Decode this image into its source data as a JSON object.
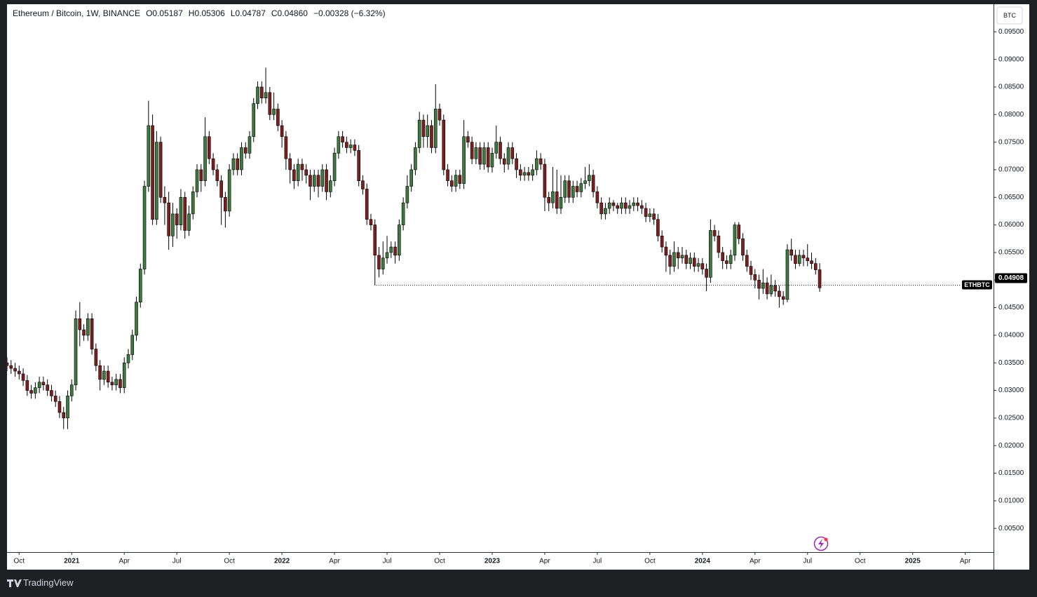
{
  "chart_data": {
    "type": "candlestick",
    "title": "Ethereum / Bitcoin, 1W, BINANCE",
    "ohlc_labels": [
      "O0.05187",
      "H0.05306",
      "L0.04787",
      "C0.04860",
      "−0.00328 (−6.32%)"
    ],
    "currency": "BTC",
    "symbol_label": "ETHBTC",
    "price_line": {
      "value": 0.04908,
      "label": "0.04908"
    },
    "up_color": "#3d7a3f",
    "down_color": "#7e1f1f",
    "wick_color": "#000000",
    "grid": false,
    "xlim": [
      0,
      244
    ],
    "xticks": [
      {
        "value": 3,
        "label": "Oct"
      },
      {
        "value": 16,
        "label": "2021"
      },
      {
        "value": 29,
        "label": "Apr"
      },
      {
        "value": 42,
        "label": "Jul"
      },
      {
        "value": 55,
        "label": "Oct"
      },
      {
        "value": 68,
        "label": "2022"
      },
      {
        "value": 81,
        "label": "Apr"
      },
      {
        "value": 94,
        "label": "Jul"
      },
      {
        "value": 107,
        "label": "Oct"
      },
      {
        "value": 120,
        "label": "2023"
      },
      {
        "value": 133,
        "label": "Apr"
      },
      {
        "value": 146,
        "label": "Jul"
      },
      {
        "value": 159,
        "label": "Oct"
      },
      {
        "value": 172,
        "label": "2024"
      },
      {
        "value": 185,
        "label": "Apr"
      },
      {
        "value": 198,
        "label": "Jul"
      },
      {
        "value": 211,
        "label": "Oct"
      },
      {
        "value": 224,
        "label": "2025"
      },
      {
        "value": 237,
        "label": "Apr"
      }
    ],
    "ylim": [
      0.0007,
      0.1
    ],
    "yticks": [
      {
        "value": 0.005,
        "label": "0.00500"
      },
      {
        "value": 0.01,
        "label": "0.01000"
      },
      {
        "value": 0.015,
        "label": "0.01500"
      },
      {
        "value": 0.02,
        "label": "0.02000"
      },
      {
        "value": 0.025,
        "label": "0.02500"
      },
      {
        "value": 0.03,
        "label": "0.03000"
      },
      {
        "value": 0.035,
        "label": "0.03500"
      },
      {
        "value": 0.04,
        "label": "0.04000"
      },
      {
        "value": 0.045,
        "label": "0.04500"
      },
      {
        "value": 0.05,
        "label": "0.05000"
      },
      {
        "value": 0.055,
        "label": "0.05500"
      },
      {
        "value": 0.06,
        "label": "0.06000"
      },
      {
        "value": 0.065,
        "label": "0.06500"
      },
      {
        "value": 0.07,
        "label": "0.07000"
      },
      {
        "value": 0.075,
        "label": "0.07500"
      },
      {
        "value": 0.08,
        "label": "0.08000"
      },
      {
        "value": 0.085,
        "label": "0.08500"
      },
      {
        "value": 0.09,
        "label": "0.09000"
      },
      {
        "value": 0.095,
        "label": "0.09500"
      }
    ],
    "open": [
      0.035,
      0.0345,
      0.034,
      0.0335,
      0.033,
      0.0318,
      0.03,
      0.0295,
      0.0305,
      0.0315,
      0.031,
      0.03,
      0.029,
      0.028,
      0.026,
      0.025,
      0.029,
      0.031,
      0.043,
      0.041,
      0.04,
      0.043,
      0.0375,
      0.0345,
      0.032,
      0.0335,
      0.0315,
      0.031,
      0.032,
      0.0305,
      0.035,
      0.0365,
      0.04,
      0.046,
      0.052,
      0.067,
      0.078,
      0.061,
      0.075,
      0.065,
      0.064,
      0.058,
      0.062,
      0.06,
      0.065,
      0.059,
      0.062,
      0.066,
      0.07,
      0.068,
      0.076,
      0.072,
      0.07,
      0.068,
      0.065,
      0.0625,
      0.07,
      0.072,
      0.07,
      0.074,
      0.073,
      0.076,
      0.082,
      0.085,
      0.083,
      0.084,
      0.08,
      0.081,
      0.078,
      0.076,
      0.072,
      0.07,
      0.068,
      0.071,
      0.07,
      0.069,
      0.067,
      0.069,
      0.067,
      0.07,
      0.066,
      0.068,
      0.073,
      0.076,
      0.075,
      0.074,
      0.0745,
      0.0735,
      0.068,
      0.0665,
      0.061,
      0.06,
      0.0545,
      0.052,
      0.054,
      0.055,
      0.056,
      0.0545,
      0.06,
      0.064,
      0.067,
      0.07,
      0.074,
      0.079,
      0.076,
      0.078,
      0.074,
      0.081,
      0.079,
      0.07,
      0.068,
      0.067,
      0.069,
      0.0675,
      0.076,
      0.075,
      0.072,
      0.074,
      0.071,
      0.074,
      0.0705,
      0.073,
      0.075,
      0.072,
      0.071,
      0.074,
      0.072,
      0.07,
      0.069,
      0.0695,
      0.069,
      0.07,
      0.072,
      0.071,
      0.065,
      0.064,
      0.066,
      0.063,
      0.065,
      0.068,
      0.065,
      0.067,
      0.066,
      0.0675,
      0.068,
      0.069,
      0.066,
      0.064,
      0.062,
      0.063,
      0.064,
      0.0635,
      0.063,
      0.064,
      0.063,
      0.0635,
      0.064,
      0.0635,
      0.063,
      0.0615,
      0.062,
      0.061,
      0.058,
      0.056,
      0.0545,
      0.0525,
      0.055,
      0.054,
      0.0545,
      0.053,
      0.054,
      0.0525,
      0.053,
      0.052,
      0.0505,
      0.059,
      0.058,
      0.055,
      0.0535,
      0.053,
      0.0545,
      0.06,
      0.0575,
      0.0545,
      0.0525,
      0.051,
      0.05,
      0.0485,
      0.0495,
      0.0475,
      0.049,
      0.048,
      0.047,
      0.0465,
      0.0555,
      0.0545,
      0.053,
      0.0545,
      0.054,
      0.0535,
      0.053,
      0.05187
    ],
    "high": [
      0.036,
      0.0355,
      0.035,
      0.0345,
      0.034,
      0.0328,
      0.031,
      0.0315,
      0.0325,
      0.0325,
      0.032,
      0.031,
      0.03,
      0.029,
      0.027,
      0.03,
      0.032,
      0.0445,
      0.046,
      0.042,
      0.044,
      0.044,
      0.0385,
      0.0355,
      0.0345,
      0.0345,
      0.0325,
      0.033,
      0.033,
      0.036,
      0.0375,
      0.041,
      0.047,
      0.053,
      0.068,
      0.0825,
      0.08,
      0.077,
      0.076,
      0.067,
      0.066,
      0.064,
      0.063,
      0.0665,
      0.066,
      0.0635,
      0.067,
      0.071,
      0.071,
      0.0795,
      0.077,
      0.073,
      0.071,
      0.069,
      0.066,
      0.071,
      0.073,
      0.073,
      0.075,
      0.075,
      0.077,
      0.083,
      0.086,
      0.086,
      0.0885,
      0.085,
      0.084,
      0.082,
      0.079,
      0.077,
      0.073,
      0.071,
      0.072,
      0.072,
      0.071,
      0.07,
      0.07,
      0.07,
      0.071,
      0.071,
      0.069,
      0.074,
      0.077,
      0.077,
      0.076,
      0.0755,
      0.0755,
      0.0745,
      0.069,
      0.0675,
      0.062,
      0.061,
      0.056,
      0.057,
      0.058,
      0.057,
      0.057,
      0.061,
      0.065,
      0.069,
      0.071,
      0.075,
      0.0805,
      0.08,
      0.08,
      0.079,
      0.0855,
      0.082,
      0.08,
      0.071,
      0.069,
      0.07,
      0.07,
      0.079,
      0.077,
      0.076,
      0.075,
      0.075,
      0.075,
      0.075,
      0.074,
      0.078,
      0.076,
      0.073,
      0.075,
      0.075,
      0.073,
      0.071,
      0.0705,
      0.0705,
      0.071,
      0.0735,
      0.073,
      0.072,
      0.066,
      0.0705,
      0.07,
      0.069,
      0.069,
      0.069,
      0.068,
      0.068,
      0.0685,
      0.0705,
      0.071,
      0.07,
      0.067,
      0.065,
      0.064,
      0.065,
      0.0645,
      0.064,
      0.065,
      0.065,
      0.0645,
      0.065,
      0.065,
      0.0645,
      0.064,
      0.063,
      0.063,
      0.062,
      0.059,
      0.057,
      0.0555,
      0.057,
      0.056,
      0.056,
      0.0555,
      0.055,
      0.055,
      0.054,
      0.054,
      0.053,
      0.061,
      0.06,
      0.059,
      0.056,
      0.0545,
      0.0555,
      0.0605,
      0.0605,
      0.0585,
      0.0555,
      0.0535,
      0.052,
      0.051,
      0.052,
      0.0505,
      0.051,
      0.05,
      0.049,
      0.048,
      0.0565,
      0.0575,
      0.0555,
      0.0555,
      0.0555,
      0.0565,
      0.055,
      0.054,
      0.05306
    ],
    "low": [
      0.0335,
      0.033,
      0.0325,
      0.032,
      0.0308,
      0.029,
      0.0285,
      0.0285,
      0.0295,
      0.03,
      0.029,
      0.028,
      0.027,
      0.025,
      0.023,
      0.023,
      0.028,
      0.03,
      0.038,
      0.039,
      0.039,
      0.0365,
      0.0335,
      0.03,
      0.031,
      0.0305,
      0.03,
      0.03,
      0.0295,
      0.0295,
      0.034,
      0.0355,
      0.039,
      0.045,
      0.051,
      0.066,
      0.06,
      0.06,
      0.064,
      0.06,
      0.0555,
      0.056,
      0.0575,
      0.059,
      0.0575,
      0.058,
      0.061,
      0.065,
      0.066,
      0.067,
      0.071,
      0.069,
      0.067,
      0.06,
      0.0595,
      0.0615,
      0.069,
      0.069,
      0.069,
      0.072,
      0.072,
      0.075,
      0.081,
      0.082,
      0.082,
      0.079,
      0.079,
      0.077,
      0.074,
      0.07,
      0.0675,
      0.0665,
      0.067,
      0.068,
      0.0675,
      0.0645,
      0.066,
      0.065,
      0.066,
      0.0645,
      0.065,
      0.067,
      0.072,
      0.074,
      0.073,
      0.073,
      0.0725,
      0.067,
      0.0655,
      0.06,
      0.059,
      0.049,
      0.0505,
      0.051,
      0.053,
      0.054,
      0.053,
      0.0535,
      0.059,
      0.063,
      0.066,
      0.069,
      0.073,
      0.074,
      0.074,
      0.073,
      0.073,
      0.078,
      0.069,
      0.067,
      0.066,
      0.066,
      0.0665,
      0.0665,
      0.074,
      0.071,
      0.071,
      0.07,
      0.07,
      0.0695,
      0.0695,
      0.072,
      0.071,
      0.0695,
      0.07,
      0.071,
      0.0685,
      0.068,
      0.068,
      0.068,
      0.068,
      0.069,
      0.07,
      0.0625,
      0.0625,
      0.063,
      0.062,
      0.062,
      0.064,
      0.064,
      0.064,
      0.065,
      0.065,
      0.0665,
      0.067,
      0.065,
      0.063,
      0.061,
      0.061,
      0.062,
      0.0625,
      0.062,
      0.062,
      0.062,
      0.062,
      0.0625,
      0.0625,
      0.062,
      0.0605,
      0.0605,
      0.06,
      0.057,
      0.055,
      0.0515,
      0.051,
      0.0515,
      0.052,
      0.053,
      0.052,
      0.052,
      0.0515,
      0.0515,
      0.051,
      0.048,
      0.0495,
      0.057,
      0.054,
      0.052,
      0.052,
      0.052,
      0.0535,
      0.0565,
      0.0535,
      0.0515,
      0.05,
      0.0485,
      0.0465,
      0.0475,
      0.0465,
      0.047,
      0.047,
      0.045,
      0.0455,
      0.046,
      0.0535,
      0.052,
      0.0525,
      0.0525,
      0.0525,
      0.052,
      0.051,
      0.04787
    ],
    "close": [
      0.0345,
      0.034,
      0.0335,
      0.033,
      0.0318,
      0.03,
      0.0295,
      0.0305,
      0.0315,
      0.031,
      0.03,
      0.029,
      0.028,
      0.026,
      0.025,
      0.029,
      0.031,
      0.043,
      0.041,
      0.04,
      0.043,
      0.0375,
      0.0345,
      0.032,
      0.0335,
      0.0315,
      0.031,
      0.032,
      0.0305,
      0.035,
      0.0365,
      0.04,
      0.046,
      0.052,
      0.067,
      0.078,
      0.061,
      0.075,
      0.065,
      0.064,
      0.058,
      0.062,
      0.06,
      0.065,
      0.059,
      0.062,
      0.066,
      0.07,
      0.068,
      0.076,
      0.072,
      0.07,
      0.068,
      0.065,
      0.0625,
      0.07,
      0.072,
      0.07,
      0.074,
      0.073,
      0.076,
      0.082,
      0.085,
      0.083,
      0.084,
      0.08,
      0.081,
      0.078,
      0.076,
      0.072,
      0.07,
      0.068,
      0.071,
      0.07,
      0.069,
      0.067,
      0.069,
      0.067,
      0.07,
      0.066,
      0.068,
      0.073,
      0.076,
      0.075,
      0.074,
      0.0745,
      0.0735,
      0.068,
      0.0665,
      0.061,
      0.06,
      0.0545,
      0.052,
      0.054,
      0.055,
      0.056,
      0.0545,
      0.06,
      0.064,
      0.067,
      0.07,
      0.074,
      0.079,
      0.076,
      0.078,
      0.074,
      0.081,
      0.079,
      0.07,
      0.068,
      0.067,
      0.069,
      0.0675,
      0.076,
      0.075,
      0.072,
      0.074,
      0.071,
      0.074,
      0.0705,
      0.073,
      0.075,
      0.072,
      0.071,
      0.074,
      0.072,
      0.07,
      0.069,
      0.0695,
      0.069,
      0.07,
      0.072,
      0.071,
      0.065,
      0.064,
      0.066,
      0.063,
      0.065,
      0.068,
      0.065,
      0.067,
      0.066,
      0.0675,
      0.068,
      0.069,
      0.066,
      0.064,
      0.062,
      0.063,
      0.064,
      0.0635,
      0.063,
      0.064,
      0.063,
      0.0635,
      0.064,
      0.0635,
      0.063,
      0.0615,
      0.062,
      0.061,
      0.058,
      0.056,
      0.0545,
      0.0525,
      0.055,
      0.054,
      0.0545,
      0.053,
      0.054,
      0.0525,
      0.053,
      0.052,
      0.0505,
      0.059,
      0.058,
      0.055,
      0.0535,
      0.053,
      0.0545,
      0.06,
      0.0575,
      0.0545,
      0.0525,
      0.051,
      0.05,
      0.0485,
      0.0495,
      0.0475,
      0.049,
      0.048,
      0.047,
      0.0465,
      0.0555,
      0.0545,
      0.053,
      0.0545,
      0.054,
      0.0535,
      0.053,
      0.05187,
      0.0486
    ]
  },
  "brand": "TradingView"
}
